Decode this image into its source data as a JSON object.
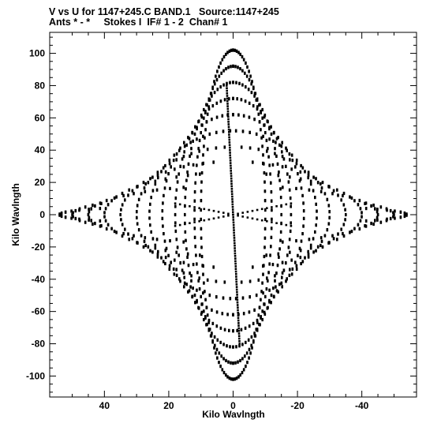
{
  "chart_data": {
    "type": "scatter",
    "title_line_1": "V vs U for 1147+245.C BAND.1   Source:1147+245",
    "title_line_2": "Ants * - *     Stokes I  IF# 1 - 2  Chan# 1",
    "xlabel": "Kilo Wavlngth",
    "ylabel": "Kilo Wavlngth",
    "x_axis_direction": "decreasing to the right",
    "xlim": [
      57,
      -57
    ],
    "ylim": [
      -113,
      113
    ],
    "x_ticks": [
      40,
      20,
      0,
      -20,
      -40
    ],
    "y_ticks": [
      100,
      80,
      60,
      40,
      20,
      0,
      -20,
      -40,
      -60,
      -80,
      -100
    ],
    "x_tick_labels": [
      "40",
      "20",
      "0",
      "-20",
      "-40"
    ],
    "y_tick_labels": [
      "100",
      "80",
      "60",
      "40",
      "20",
      "0",
      "-20",
      "-40",
      "-60",
      "-80",
      "-100"
    ],
    "grid": false,
    "marker_color": "#000000",
    "approximate_tracks": {
      "description": "uv-coverage points lie on elliptical tracks; each track is listed as u-radius, v-radius and the estimated angular extents (degrees) that carry points",
      "tracks": [
        {
          "u_radius": 54,
          "v_radius": 6,
          "arcs": [
            [
              -40,
              40
            ],
            [
              140,
              220
            ]
          ]
        },
        {
          "u_radius": 50,
          "v_radius": 12,
          "arcs": [
            [
              -35,
              35
            ],
            [
              145,
              215
            ]
          ]
        },
        {
          "u_radius": 45,
          "v_radius": 18,
          "arcs": [
            [
              -70,
              70
            ],
            [
              110,
              250
            ]
          ]
        },
        {
          "u_radius": 40,
          "v_radius": 26,
          "arcs": [
            [
              -75,
              75
            ],
            [
              105,
              255
            ]
          ]
        },
        {
          "u_radius": 35,
          "v_radius": 33,
          "arcs": [
            [
              -80,
              80
            ],
            [
              100,
              260
            ]
          ]
        },
        {
          "u_radius": 30,
          "v_radius": 42,
          "arcs": [
            [
              -85,
              85
            ],
            [
              95,
              265
            ]
          ]
        },
        {
          "u_radius": 26,
          "v_radius": 52,
          "arcs": [
            [
              -88,
              88
            ],
            [
              92,
              268
            ]
          ]
        },
        {
          "u_radius": 22,
          "v_radius": 62,
          "arcs": [
            [
              -90,
              90
            ],
            [
              90,
              270
            ]
          ]
        },
        {
          "u_radius": 18,
          "v_radius": 72,
          "arcs": [
            [
              -90,
              90
            ],
            [
              90,
              270
            ]
          ]
        },
        {
          "u_radius": 15,
          "v_radius": 82,
          "arcs": [
            [
              -90,
              90
            ],
            [
              90,
              270
            ]
          ]
        },
        {
          "u_radius": 12,
          "v_radius": 92,
          "arcs": [
            [
              -90,
              90
            ],
            [
              90,
              270
            ]
          ]
        },
        {
          "u_radius": 10,
          "v_radius": 102,
          "arcs": [
            [
              -90,
              90
            ],
            [
              90,
              270
            ]
          ]
        }
      ],
      "linear_features": [
        {
          "from": [
            -18,
            -7
          ],
          "to": [
            18,
            7
          ]
        },
        {
          "from": [
            18,
            -7
          ],
          "to": [
            -18,
            7
          ]
        },
        {
          "from": [
            -2,
            -80
          ],
          "to": [
            2,
            80
          ]
        }
      ]
    }
  }
}
